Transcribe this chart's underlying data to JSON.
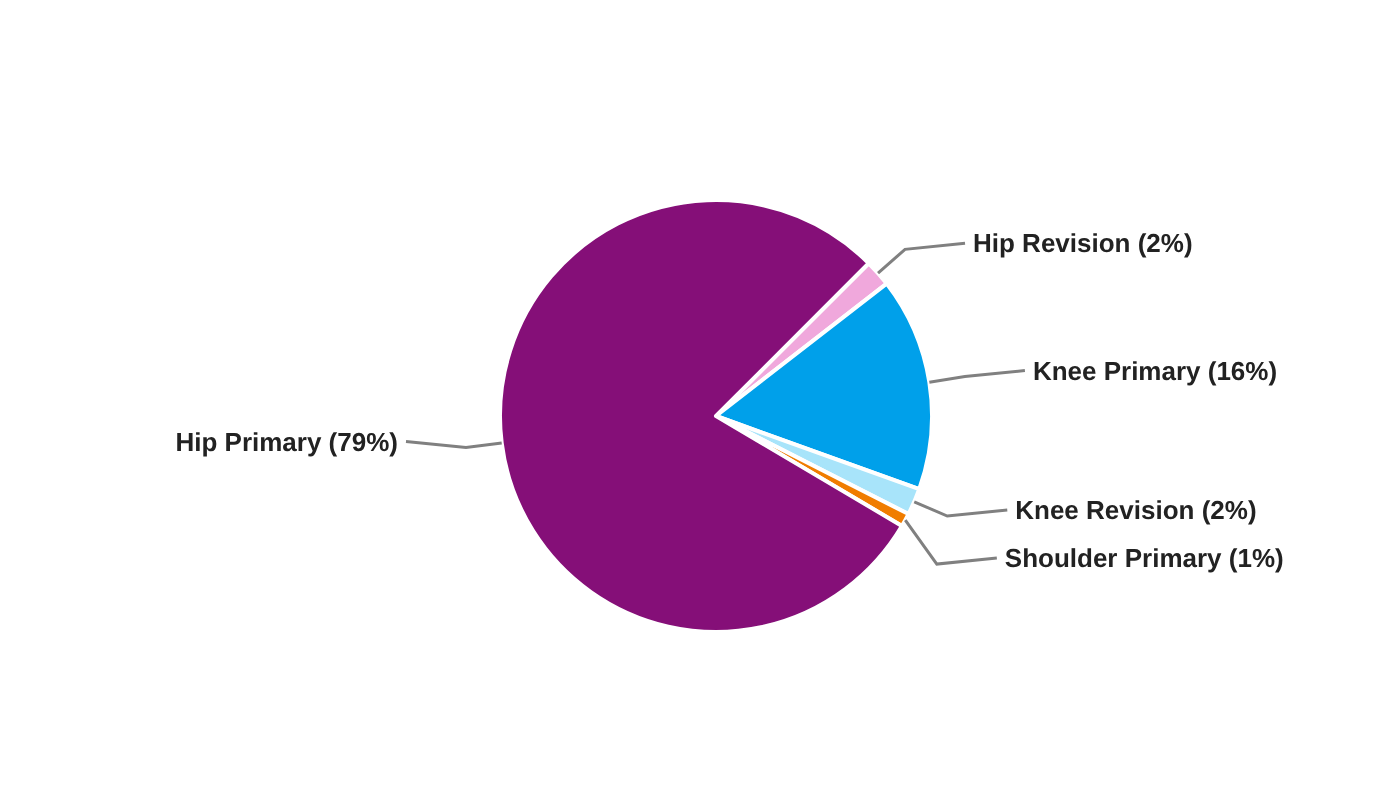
{
  "chart_data": {
    "type": "pie",
    "categories": [
      "Hip Revision",
      "Knee Primary",
      "Knee Revision",
      "Shoulder Primary",
      "Hip Primary"
    ],
    "values": [
      2,
      16,
      2,
      1,
      79
    ],
    "value_labels": [
      "(2%)",
      "(16%)",
      "(2%)",
      "(1%)",
      "(79%)"
    ],
    "colors": [
      "#f0a8dc",
      "#00a0ea",
      "#a8e4fa",
      "#f07d00",
      "#850f78"
    ]
  }
}
